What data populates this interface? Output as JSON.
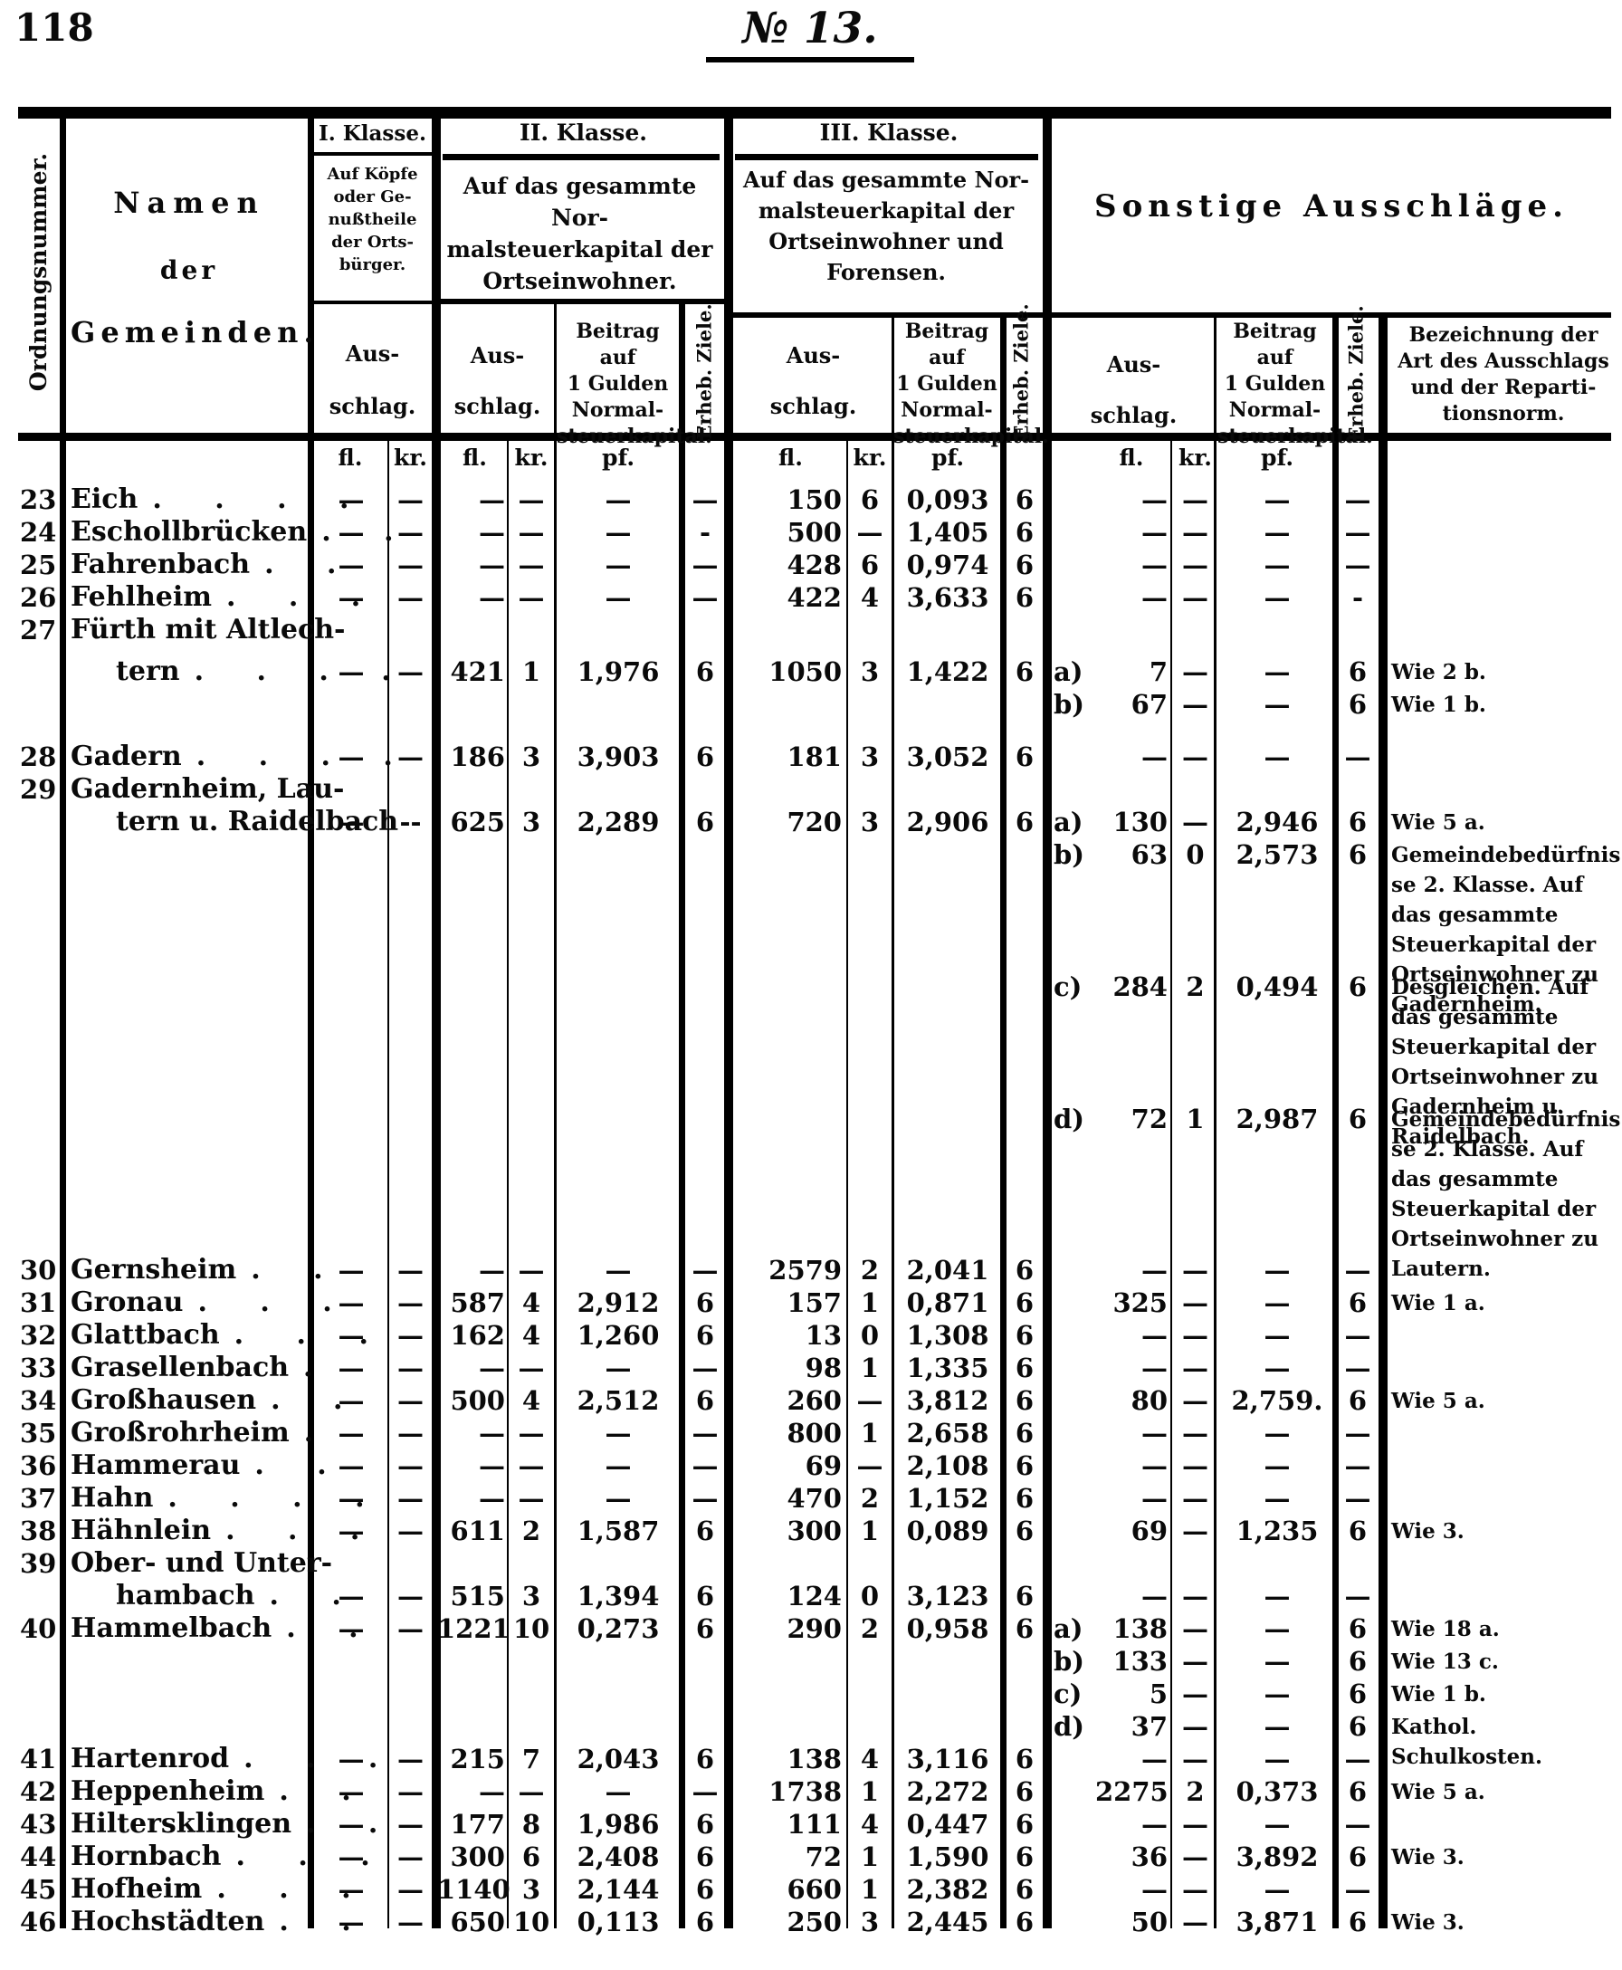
{
  "page": {
    "number": "118",
    "doc_number": "№ 13."
  },
  "table": {
    "header": {
      "ordnungsnummer": "Ordnungsnummer.",
      "namen_line1": "Namen",
      "namen_line2": "der",
      "namen_line3": "Gemeinden.",
      "klasse1": {
        "title": "I. Klasse.",
        "desc": "Auf Köpfe\noder Ge-\nnußtheile\nder Orts-\nbürger.",
        "ausschlag": "Aus-\nschlag."
      },
      "klasse2": {
        "title": "II. Klasse.",
        "desc": "Auf das gesammte Nor-\nmalsteuerkapital der\nOrtseinwohner.",
        "ausschlag": "Aus-\nschlag.",
        "beitrag": "Beitrag auf\n1 Gulden\nNormal-\nsteuerkapital.",
        "erheb": "Erheb. Ziele."
      },
      "klasse3": {
        "title": "III. Klasse.",
        "desc": "Auf das gesammte Nor-\nmalsteuerkapital der\nOrtseinwohner und\nForensen.",
        "ausschlag": "Aus-\nschlag.",
        "beitrag": "Beitrag auf\n1 Gulden\nNormal-\nsteuerkapital.",
        "erheb": "Erheb. Ziele."
      },
      "sonstige": {
        "title": "Sonstige Ausschläge.",
        "ausschlag": "Aus-\nschlag.",
        "beitrag": "Beitrag auf\n1 Gulden\nNormal-\nsteuerkapital.",
        "erheb": "Erheb. Ziele.",
        "bezeichnung": "Bezeichnung der\nArt des Ausschlags\nund der Reparti-\ntionsnorm."
      },
      "units": {
        "fl": "fl.",
        "kr": "kr.",
        "pf": "pf."
      }
    },
    "rows": [
      {
        "no": "23",
        "name": "Eich",
        "dots": ". . . .",
        "ifl": "—",
        "ikr": "—",
        "f2": "—",
        "k2": "—",
        "p2": "—",
        "z2": "—",
        "f3": "150",
        "k3": "6",
        "p3": "0,093",
        "z3": "6",
        "sf": "—",
        "sk": "—",
        "sp": "—",
        "sz": "—"
      },
      {
        "no": "24",
        "name": "Eschollbrücken",
        "dots": ". .",
        "ifl": "—",
        "ikr": "—",
        "f2": "—",
        "k2": "—",
        "p2": "—",
        "z2": "-",
        "f3": "500",
        "k3": "—",
        "p3": "1,405",
        "z3": "6",
        "sf": "—",
        "sk": "—",
        "sp": "—",
        "sz": "—"
      },
      {
        "no": "25",
        "name": "Fahrenbach",
        "dots": ". .",
        "ifl": "—",
        "ikr": "—",
        "f2": "—",
        "k2": "—",
        "p2": "—",
        "z2": "—",
        "f3": "428",
        "k3": "6",
        "p3": "0,974",
        "z3": "6",
        "sf": "—",
        "sk": "—",
        "sp": "—",
        "sz": "—"
      },
      {
        "no": "26",
        "name": "Fehlheim",
        "dots": ". . .",
        "ifl": "—",
        "ikr": "—",
        "f2": "—",
        "k2": "—",
        "p2": "—",
        "z2": "—",
        "f3": "422",
        "k3": "4",
        "p3": "3,633",
        "z3": "6",
        "sf": "—",
        "sk": "—",
        "sp": "—",
        "sz": "-"
      },
      {
        "no": "27",
        "name": "Fürth mit Altlech-"
      },
      {
        "gap": 10,
        "name": "tern",
        "ind": 1,
        "dots": ". . . .",
        "ifl": "—",
        "ikr": "—",
        "f2": "421",
        "k2": "1",
        "p2": "1,976",
        "z2": "6",
        "f3": "1050",
        "k3": "3",
        "p3": "1,422",
        "z3": "6",
        "sl": "a)",
        "sf": "7",
        "sk": "—",
        "sp": "—",
        "sz": "6",
        "rem": "Wie 2 b."
      },
      {
        "sl": "b)",
        "sf": "67",
        "sk": "—",
        "sp": "—",
        "sz": "6",
        "rem": "Wie 1 b."
      },
      {
        "gap": 22,
        "no": "28",
        "name": "Gadern",
        "dots": ". . . .",
        "ifl": "—",
        "ikr": "—",
        "f2": "186",
        "k2": "3",
        "p2": "3,903",
        "z2": "6",
        "f3": "181",
        "k3": "3",
        "p3": "3,052",
        "z3": "6",
        "sf": "—",
        "sk": "—",
        "sp": "—",
        "sz": "—"
      },
      {
        "no": "29",
        "name": "Gadernheim, Lau-"
      },
      {
        "name": "tern u. Raidelbach",
        "ind": 1,
        "ifl": "—",
        "ikr": "--",
        "f2": "625",
        "k2": "3",
        "p2": "2,289",
        "z2": "6",
        "f3": "720",
        "k3": "3",
        "p3": "2,906",
        "z3": "6",
        "sl": "a)",
        "sf": "130",
        "sk": "—",
        "sp": "2,946",
        "sz": "6",
        "rem": "Wie 5 a."
      },
      {
        "sl": "b)",
        "sf": "63",
        "sk": "0",
        "sp": "2,573",
        "sz": "6",
        "rem": "Gemeindebedürfnisse 2. Klasse. Auf das gesammte Steuerkapital der Ortseinwohner zu Gadernheim."
      },
      {
        "gap": 110,
        "sl": "c)",
        "sf": "284",
        "sk": "2",
        "sp": "0,494",
        "sz": "6",
        "rem": "Desgleichen. Auf das gesammte Steuerkapital der Ortseinwohner zu Gadernheim u. Raidelbach."
      },
      {
        "gap": 110,
        "sl": "d)",
        "sf": "72",
        "sk": "1",
        "sp": "2,987",
        "sz": "6",
        "rem": "Gemeindebedürfnisse 2. Klasse. Auf das gesammte Steuerkapital der Ortseinwohner zu Lautern."
      },
      {
        "gap": 131,
        "no": "30",
        "name": "Gernsheim",
        "dots": ". .",
        "ifl": "—",
        "ikr": "—",
        "f2": "—",
        "k2": "—",
        "p2": "—",
        "z2": "—",
        "f3": "2579",
        "k3": "2",
        "p3": "2,041",
        "z3": "6",
        "sf": "—",
        "sk": "—",
        "sp": "—",
        "sz": "—"
      },
      {
        "no": "31",
        "name": "Gronau",
        "dots": ". . .",
        "ifl": "—",
        "ikr": "—",
        "f2": "587",
        "k2": "4",
        "p2": "2,912",
        "z2": "6",
        "f3": "157",
        "k3": "1",
        "p3": "0,871",
        "z3": "6",
        "sf": "325",
        "sk": "—",
        "sp": "—",
        "sz": "6",
        "rem": "Wie 1 a."
      },
      {
        "no": "32",
        "name": "Glattbach",
        "dots": ". . .",
        "ifl": "—",
        "ikr": "—",
        "f2": "162",
        "k2": "4",
        "p2": "1,260",
        "z2": "6",
        "f3": "13",
        "k3": "0",
        "p3": "1,308",
        "z3": "6",
        "sf": "—",
        "sk": "—",
        "sp": "—",
        "sz": "—"
      },
      {
        "no": "33",
        "name": "Grasellenbach",
        "dots": ".",
        "ifl": "—",
        "ikr": "—",
        "f2": "—",
        "k2": "—",
        "p2": "—",
        "z2": "—",
        "f3": "98",
        "k3": "1",
        "p3": "1,335",
        "z3": "6",
        "sf": "—",
        "sk": "—",
        "sp": "—",
        "sz": "—"
      },
      {
        "no": "34",
        "name": "Großhausen",
        "dots": ". .",
        "ifl": "—",
        "ikr": "—",
        "f2": "500",
        "k2": "4",
        "p2": "2,512",
        "z2": "6",
        "f3": "260",
        "k3": "—",
        "p3": "3,812",
        "z3": "6",
        "sf": "80",
        "sk": "—",
        "sp": "2,759.",
        "sz": "6",
        "rem": "Wie 5 a."
      },
      {
        "no": "35",
        "name": "Großrohrheim",
        "dots": ".",
        "ifl": "—",
        "ikr": "—",
        "f2": "—",
        "k2": "—",
        "p2": "—",
        "z2": "—",
        "f3": "800",
        "k3": "1",
        "p3": "2,658",
        "z3": "6",
        "sf": "—",
        "sk": "—",
        "sp": "—",
        "sz": "—"
      },
      {
        "no": "36",
        "name": "Hammerau",
        "dots": ". .",
        "ifl": "—",
        "ikr": "—",
        "f2": "—",
        "k2": "—",
        "p2": "—",
        "z2": "—",
        "f3": "69",
        "k3": "—",
        "p3": "2,108",
        "z3": "6",
        "sf": "—",
        "sk": "—",
        "sp": "—",
        "sz": "—"
      },
      {
        "no": "37",
        "name": "Hahn",
        "dots": ". . . .",
        "ifl": "—",
        "ikr": "—",
        "f2": "—",
        "k2": "—",
        "p2": "—",
        "z2": "—",
        "f3": "470",
        "k3": "2",
        "p3": "1,152",
        "z3": "6",
        "sf": "—",
        "sk": "—",
        "sp": "—",
        "sz": "—"
      },
      {
        "no": "38",
        "name": "Hähnlein",
        "dots": ". . .",
        "ifl": "—",
        "ikr": "—",
        "f2": "611",
        "k2": "2",
        "p2": "1,587",
        "z2": "6",
        "f3": "300",
        "k3": "1",
        "p3": "0,089",
        "z3": "6",
        "sf": "69",
        "sk": "—",
        "sp": "1,235",
        "sz": "6",
        "rem": "Wie 3."
      },
      {
        "no": "39",
        "name": "Ober- und Unter-"
      },
      {
        "name": "hambach",
        "ind": 1,
        "dots": ". .",
        "ifl": "—",
        "ikr": "—",
        "f2": "515",
        "k2": "3",
        "p2": "1,394",
        "z2": "6",
        "f3": "124",
        "k3": "0",
        "p3": "3,123",
        "z3": "6",
        "sf": "—",
        "sk": "—",
        "sp": "—",
        "sz": "—"
      },
      {
        "no": "40",
        "name": "Hammelbach",
        "dots": ". .",
        "ifl": "—",
        "ikr": "—",
        "f2": "1221",
        "k2": "10",
        "p2": "0,273",
        "z2": "6",
        "f3": "290",
        "k3": "2",
        "p3": "0,958",
        "z3": "6",
        "sl": "a)",
        "sf": "138",
        "sk": "—",
        "sp": "—",
        "sz": "6",
        "rem": "Wie 18 a."
      },
      {
        "sl": "b)",
        "sf": "133",
        "sk": "—",
        "sp": "—",
        "sz": "6",
        "rem": "Wie 13 c."
      },
      {
        "sl": "c)",
        "sf": "5",
        "sk": "—",
        "sp": "—",
        "sz": "6",
        "rem": "Wie 1 b."
      },
      {
        "sl": "d)",
        "sf": "37",
        "sk": "—",
        "sp": "—",
        "sz": "6",
        "rem": "Kathol. Schulkosten."
      },
      {
        "no": "41",
        "name": "Hartenrod",
        "dots": ". . .",
        "ifl": "—",
        "ikr": "—",
        "f2": "215",
        "k2": "7",
        "p2": "2,043",
        "z2": "6",
        "f3": "138",
        "k3": "4",
        "p3": "3,116",
        "z3": "6",
        "sf": "—",
        "sk": "—",
        "sp": "—",
        "sz": "—"
      },
      {
        "no": "42",
        "name": "Heppenheim",
        "dots": ". .",
        "ifl": "—",
        "ikr": "—",
        "f2": "—",
        "k2": "—",
        "p2": "—",
        "z2": "—",
        "f3": "1738",
        "k3": "1",
        "p3": "2,272",
        "z3": "6",
        "sf": "2275",
        "sk": "2",
        "sp": "0,373",
        "sz": "6",
        "rem": "Wie 5 a."
      },
      {
        "no": "43",
        "name": "Hiltersklingen",
        "dots": ". .",
        "ifl": "—",
        "ikr": "—",
        "f2": "177",
        "k2": "8",
        "p2": "1,986",
        "z2": "6",
        "f3": "111",
        "k3": "4",
        "p3": "0,447",
        "z3": "6",
        "sf": "—",
        "sk": "—",
        "sp": "—",
        "sz": "—"
      },
      {
        "no": "44",
        "name": "Hornbach",
        "dots": ". . .",
        "ifl": "—",
        "ikr": "—",
        "f2": "300",
        "k2": "6",
        "p2": "2,408",
        "z2": "6",
        "f3": "72",
        "k3": "1",
        "p3": "1,590",
        "z3": "6",
        "sf": "36",
        "sk": "—",
        "sp": "3,892",
        "sz": "6",
        "rem": "Wie 3."
      },
      {
        "no": "45",
        "name": "Hofheim",
        "dots": ". . .",
        "ifl": "—",
        "ikr": "—",
        "f2": "1140",
        "k2": "3",
        "p2": "2,144",
        "z2": "6",
        "f3": "660",
        "k3": "1",
        "p3": "2,382",
        "z3": "6",
        "sf": "—",
        "sk": "—",
        "sp": "—",
        "sz": "—"
      },
      {
        "no": "46",
        "name": "Hochstädten",
        "dots": ". .",
        "ifl": "—",
        "ikr": "—",
        "f2": "650",
        "k2": "10",
        "p2": "0,113",
        "z2": "6",
        "f3": "250",
        "k3": "3",
        "p3": "2,445",
        "z3": "6",
        "sf": "50",
        "sk": "—",
        "sp": "3,871",
        "sz": "6",
        "rem": "Wie 3."
      }
    ]
  }
}
